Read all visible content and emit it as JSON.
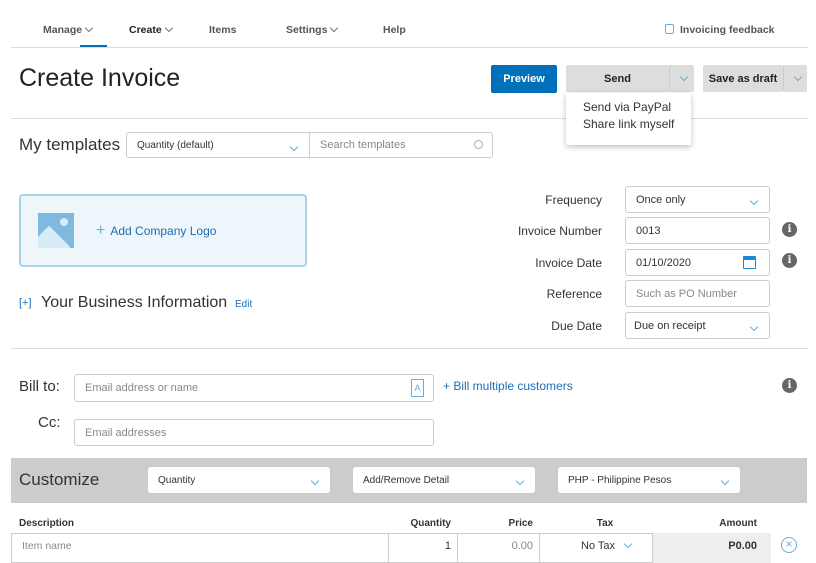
{
  "nav": {
    "items": [
      "Manage",
      "Create",
      "Items",
      "Settings",
      "Help"
    ],
    "feedback": "Invoicing feedback"
  },
  "header": {
    "title": "Create Invoice",
    "preview": "Preview",
    "send": "Send",
    "save_draft": "Save as draft"
  },
  "send_menu": {
    "items": [
      "Send via PayPal",
      "Share link myself"
    ]
  },
  "templates": {
    "label": "My templates",
    "selected": "Quantity (default)",
    "search_placeholder": "Search templates"
  },
  "logo": {
    "label": "Add Company Logo"
  },
  "business": {
    "toggle": "[+]",
    "label": "Your Business Information",
    "edit": "Edit"
  },
  "fields": {
    "frequency_label": "Frequency",
    "frequency": "Once only",
    "invoice_number_label": "Invoice Number",
    "invoice_number": "0013",
    "invoice_date_label": "Invoice Date",
    "invoice_date": "01/10/2020",
    "reference_label": "Reference",
    "reference_placeholder": "Such as PO Number",
    "due_date_label": "Due Date",
    "due_date": "Due on receipt"
  },
  "bill": {
    "bill_to_label": "Bill to:",
    "bill_to_placeholder": "Email address or name",
    "multiple": "+ Bill multiple customers",
    "cc_label": "Cc:",
    "cc_placeholder": "Email addresses"
  },
  "customize": {
    "label": "Customize",
    "quantity": "Quantity",
    "detail": "Add/Remove Detail",
    "currency": "PHP - Philippine Pesos"
  },
  "table": {
    "headers": [
      "Description",
      "Quantity",
      "Price",
      "Tax",
      "Amount"
    ],
    "row": {
      "description_placeholder": "Item name",
      "quantity": "1",
      "price": "0.00",
      "tax": "No Tax",
      "amount": "P0.00"
    }
  },
  "colors": {
    "accent": "#0070ba",
    "link": "#1a6fb5"
  }
}
